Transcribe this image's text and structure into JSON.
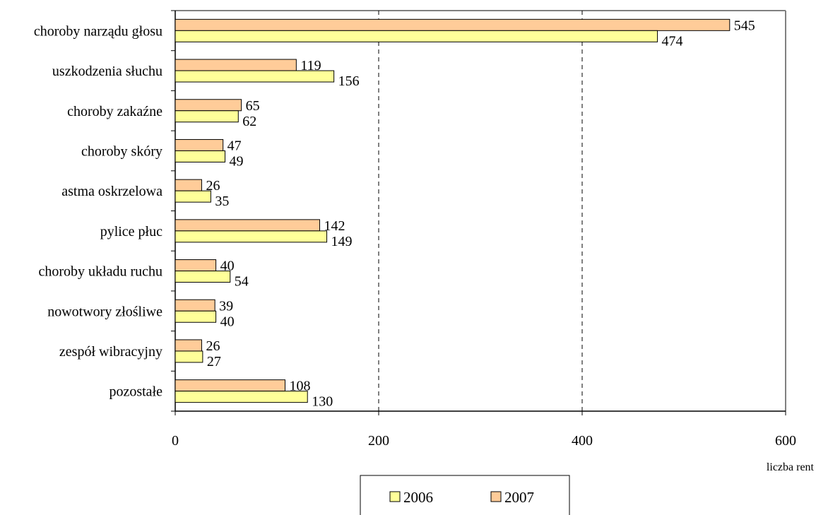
{
  "chart_data": {
    "type": "bar",
    "orientation": "horizontal",
    "categories": [
      "choroby narządu głosu",
      "uszkodzenia słuchu",
      "choroby zakaźne",
      "choroby skóry",
      "astma oskrzelowa",
      "pylice płuc",
      "choroby układu ruchu",
      "nowotwory złośliwe",
      "zespół wibracyjny",
      "pozostałe"
    ],
    "series": [
      {
        "name": "2006",
        "color": "#FFFF99",
        "values": [
          474,
          156,
          62,
          49,
          35,
          149,
          54,
          40,
          27,
          130
        ]
      },
      {
        "name": "2007",
        "color": "#FFCC99",
        "values": [
          545,
          119,
          65,
          47,
          26,
          142,
          40,
          39,
          26,
          108
        ]
      }
    ],
    "xlabel": "liczba rent",
    "xlim": [
      0,
      600
    ],
    "xticks": [
      0,
      200,
      400,
      600
    ],
    "gridlines": "vertical dashed",
    "legend_position": "bottom-center"
  }
}
